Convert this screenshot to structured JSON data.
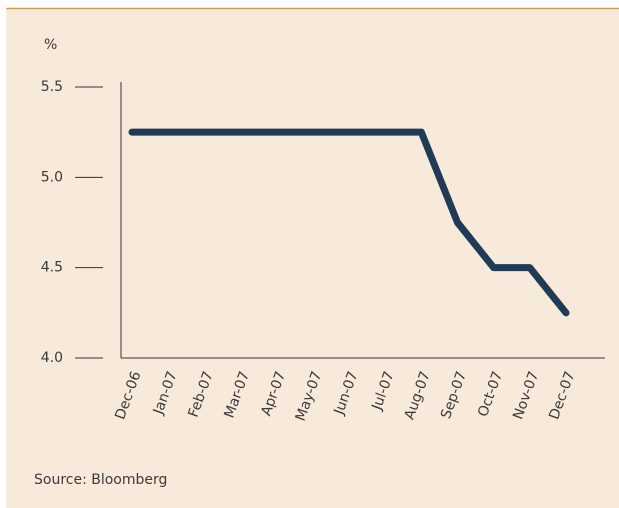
{
  "chart_data": {
    "type": "line",
    "y_label": "%",
    "source": "Source: Bloomberg",
    "categories": [
      "Dec-06",
      "Jan-07",
      "Feb-07",
      "Mar-07",
      "Apr-07",
      "May-07",
      "Jun-07",
      "Jul-07",
      "Aug-07",
      "Sep-07",
      "Oct-07",
      "Nov-07",
      "Dec-07"
    ],
    "values": [
      5.25,
      5.25,
      5.25,
      5.25,
      5.25,
      5.25,
      5.25,
      5.25,
      5.25,
      4.75,
      4.5,
      4.5,
      4.25
    ],
    "color": "#1f3b55",
    "ylim": [
      4.0,
      5.5
    ],
    "yticks": [
      {
        "value": 4.0,
        "label": "4.0"
      },
      4.5,
      {
        "value": 5.0,
        "label": "5.0"
      },
      5.5
    ]
  }
}
